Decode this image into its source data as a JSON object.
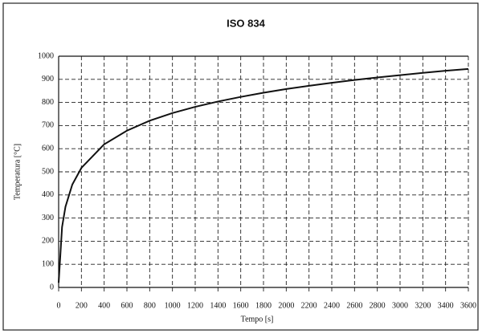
{
  "chart_data": {
    "type": "line",
    "title": "ISO 834",
    "x_label": "Tempo [s]",
    "y_label": "Temperatura [°C]",
    "x": [
      0,
      30,
      60,
      120,
      200,
      400,
      600,
      800,
      1000,
      1200,
      1400,
      1600,
      1800,
      2000,
      2200,
      2400,
      2600,
      2800,
      3000,
      3200,
      3400,
      3600
    ],
    "series": [
      {
        "name": "ISO 834",
        "color": "#111111",
        "values": [
          20,
          261,
          349,
          445,
          517,
          619,
          678,
          721,
          754,
          781,
          804,
          824,
          842,
          858,
          872,
          885,
          897,
          908,
          918,
          928,
          937,
          945
        ]
      }
    ],
    "xlim": [
      0,
      3600
    ],
    "xticks": [
      0,
      200,
      400,
      600,
      800,
      1000,
      1200,
      1400,
      1600,
      1800,
      2000,
      2200,
      2400,
      2600,
      2800,
      3000,
      3200,
      3400,
      3600
    ],
    "ylim": [
      0,
      1000
    ],
    "yticks": [
      0,
      100,
      200,
      300,
      400,
      500,
      600,
      700,
      800,
      900,
      1000
    ],
    "grid": true
  }
}
